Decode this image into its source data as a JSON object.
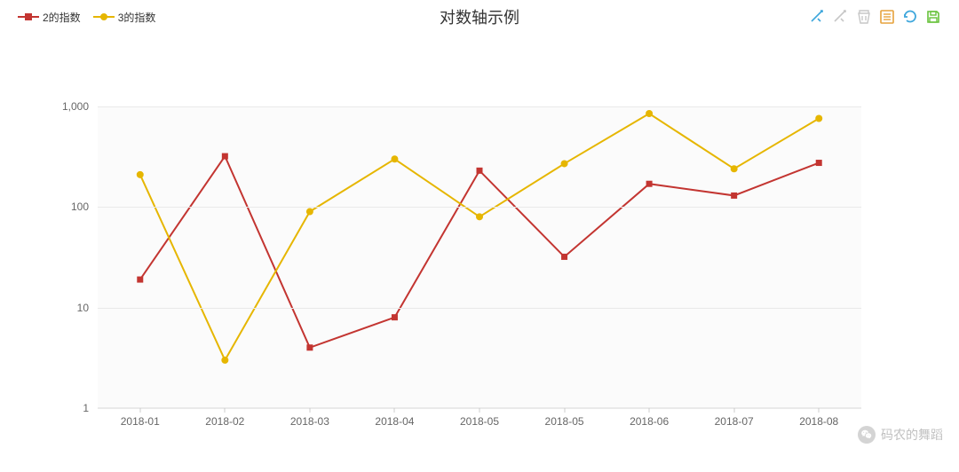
{
  "title": "对数轴示例",
  "legend": [
    {
      "name": "2的指数",
      "color": "#c33531",
      "marker": "square"
    },
    {
      "name": "3的指数",
      "color": "#e6b600",
      "marker": "circle"
    }
  ],
  "chart": {
    "type": "line",
    "background_color": "#fbfbfb",
    "grid_color": "#e9e9e9",
    "scale": "log",
    "ylim": [
      1,
      1000
    ],
    "yticks": [
      1,
      10,
      100,
      1000
    ],
    "ytick_labels": [
      "1",
      "10",
      "100",
      "1,000"
    ],
    "categories": [
      "2018-01",
      "2018-02",
      "2018-03",
      "2018-04",
      "2018-05",
      "2018-05",
      "2018-06",
      "2018-07",
      "2018-08"
    ],
    "series": [
      {
        "name": "2的指数",
        "color": "#c33531",
        "marker": "square",
        "line_width": 2,
        "marker_size": 7,
        "values": [
          19,
          320,
          4,
          8,
          230,
          32,
          170,
          130,
          275
        ]
      },
      {
        "name": "3的指数",
        "color": "#e6b600",
        "marker": "circle",
        "line_width": 2,
        "marker_size": 8,
        "values": [
          210,
          3,
          90,
          300,
          80,
          270,
          850,
          240,
          760
        ]
      }
    ],
    "axis_fontsize": 12,
    "title_fontsize": 18,
    "text_color": "#666666"
  },
  "toolbar": {
    "icons": [
      "area-zoom",
      "area-zoom-reset",
      "restore",
      "data-view",
      "refresh",
      "save"
    ],
    "colors": {
      "active": "#3fa7dc",
      "inactive": "#c7c7c7",
      "orange": "#e6a23c",
      "green": "#67c23a"
    }
  },
  "watermark": "码农的舞蹈"
}
